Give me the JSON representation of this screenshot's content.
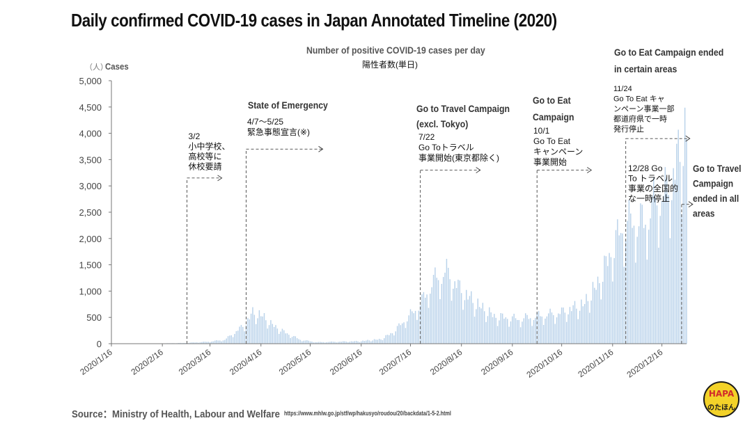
{
  "page": {
    "title": "Daily confirmed COVID-19 cases in Japan Annotated Timeline (2020)",
    "subtitle_en": "Number of positive COVID-19 cases per day",
    "subtitle_jp": "陽性者数(単日)",
    "unit_jp": "（人）",
    "source": "Source：Ministry of Health, Labour and Welfare",
    "source_url": "https://www.mhlw.go.jp/stf/wp/hakusyo/roudou/20/backdata/1-5-2.html",
    "logo_text": "HAPA",
    "logo_sub": "のたほん"
  },
  "colors": {
    "bar": "#b9d2ea",
    "axis": "#777777",
    "annotation": "#111111"
  },
  "chart_data": {
    "type": "bar",
    "title": "Number of positive COVID-19 cases per day",
    "ylabel": "Cases",
    "xlabel": "",
    "ylim": [
      0,
      5000
    ],
    "yticks": [
      "0",
      "500",
      "1,000",
      "1,500",
      "2,000",
      "2,500",
      "3,000",
      "3,500",
      "4,000",
      "4,500",
      "5,000"
    ],
    "xticks": [
      "2020/1/16",
      "2020/2/16",
      "2020/3/16",
      "2020/4/16",
      "2020/5/16",
      "2020/6/16",
      "2020/7/16",
      "2020/8/16",
      "2020/9/16",
      "2020/10/16",
      "2020/11/16",
      "2020/12/16"
    ],
    "grid": false,
    "date_range": [
      "2020/1/16",
      "2020/12/31"
    ],
    "profile": [
      [
        "2020/1/16",
        0
      ],
      [
        "2020/2/14",
        5
      ],
      [
        "2020/3/1",
        15
      ],
      [
        "2020/3/15",
        40
      ],
      [
        "2020/3/25",
        80
      ],
      [
        "2020/4/1",
        250
      ],
      [
        "2020/4/6",
        380
      ],
      [
        "2020/4/11",
        620
      ],
      [
        "2020/4/17",
        560
      ],
      [
        "2020/4/22",
        400
      ],
      [
        "2020/5/1",
        220
      ],
      [
        "2020/5/10",
        80
      ],
      [
        "2020/5/20",
        30
      ],
      [
        "2020/6/1",
        40
      ],
      [
        "2020/6/15",
        50
      ],
      [
        "2020/6/28",
        90
      ],
      [
        "2020/7/5",
        220
      ],
      [
        "2020/7/15",
        550
      ],
      [
        "2020/7/22",
        800
      ],
      [
        "2020/7/30",
        1280
      ],
      [
        "2020/8/7",
        1450
      ],
      [
        "2020/8/15",
        1100
      ],
      [
        "2020/8/25",
        800
      ],
      [
        "2020/9/5",
        550
      ],
      [
        "2020/9/20",
        500
      ],
      [
        "2020/10/1",
        560
      ],
      [
        "2020/10/15",
        620
      ],
      [
        "2020/10/30",
        800
      ],
      [
        "2020/11/7",
        1200
      ],
      [
        "2020/11/14",
        1750
      ],
      [
        "2020/11/21",
        2300
      ],
      [
        "2020/11/28",
        2500
      ],
      [
        "2020/12/5",
        2450
      ],
      [
        "2020/12/12",
        2900
      ],
      [
        "2020/12/19",
        3050
      ],
      [
        "2020/12/26",
        3700
      ],
      [
        "2020/12/31",
        4400
      ]
    ]
  },
  "annotations": [
    {
      "id": "school-closure",
      "date": "2020/3/2",
      "top_value": 3150,
      "lines": [
        "3/2",
        "小中学校、",
        "高校等に",
        "休校要請"
      ]
    },
    {
      "id": "state-of-emergency",
      "date": "2020/4/7",
      "top_value": 3700,
      "heading": "State of Emergency",
      "lines": [
        "4/7〜5/25",
        "緊急事態宣言(※)"
      ]
    },
    {
      "id": "go-to-travel",
      "date": "2020/7/22",
      "top_value": 3300,
      "heading_lines": [
        "Go to Travel Campaign",
        "(excl. Tokyo)"
      ],
      "lines": [
        "7/22",
        "Go Toトラベル",
        "事業開始(東京都除く)"
      ]
    },
    {
      "id": "go-to-eat",
      "date": "2020/10/1",
      "top_value": 3300,
      "heading_lines": [
        "Go to Eat",
        "Campaign"
      ],
      "lines": [
        "10/1",
        "Go To Eat",
        "キャンペーン",
        "事業開始"
      ]
    },
    {
      "id": "go-to-eat-ended",
      "date": "2020/11/24",
      "top_value": 3900,
      "heading_lines": [
        "Go to Eat Campaign  ended",
        "in certain areas"
      ],
      "lines": [
        "11/24",
        "Go To Eat キャ",
        "ンペーン事業一部",
        "都道府県で一時",
        "発行停止"
      ]
    },
    {
      "id": "go-to-travel-ended",
      "date": "2020/12/28",
      "top_value": 2650,
      "heading_lines": [
        "Go to Travel",
        "Campaign",
        "ended in all",
        "areas"
      ],
      "lines": [
        "12/28 Go",
        "To トラベル",
        "事業の全国的",
        "な一時停止"
      ]
    }
  ]
}
